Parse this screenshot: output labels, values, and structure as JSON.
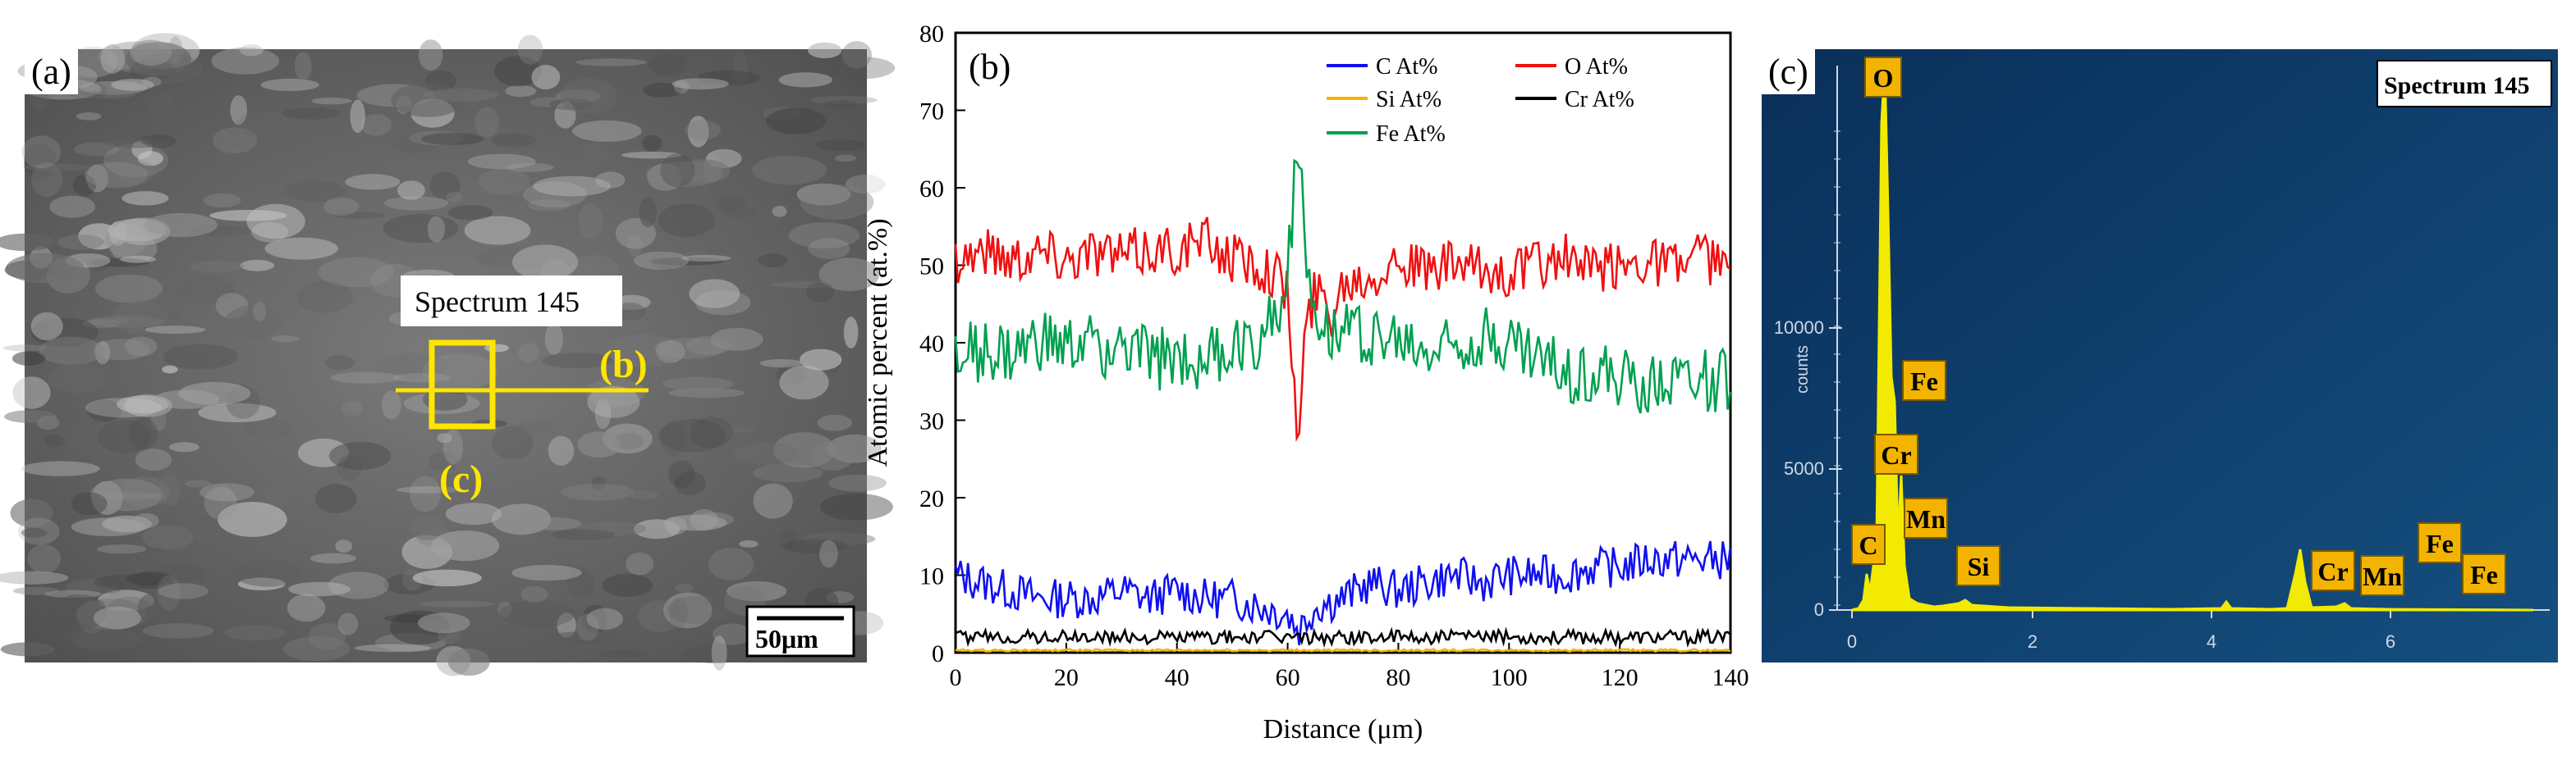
{
  "panel_a": {
    "letter": "(a)",
    "spectrum_label": "Spectrum 145",
    "line_label": "(b)",
    "box_label": "(c)",
    "scale_bar": "50μm"
  },
  "panel_b_letter": "(b)",
  "panel_c": {
    "letter": "(c)",
    "spectrum_label": "Spectrum 145",
    "y_axis_label": "counts",
    "y_ticks": [
      "0",
      "5000",
      "10000"
    ],
    "x_ticks": [
      "0",
      "2",
      "4",
      "6"
    ],
    "element_labels": [
      "O",
      "Fe",
      "Cr",
      "Mn",
      "C",
      "Si",
      "Cr",
      "Mn",
      "Fe",
      "Fe"
    ]
  },
  "chart_data": [
    {
      "type": "line",
      "xlabel": "Distance (μm)",
      "ylabel": "Atomic percent (at.%)",
      "xlim": [
        0,
        140
      ],
      "ylim": [
        0,
        80
      ],
      "x_ticks": [
        0,
        20,
        40,
        60,
        80,
        100,
        120,
        140
      ],
      "y_ticks": [
        0,
        10,
        20,
        30,
        40,
        50,
        60,
        70,
        80
      ],
      "legend_position": "top-right",
      "series": [
        {
          "name": "C At%",
          "color": "#1010f0",
          "points": [
            [
              0,
              10
            ],
            [
              5,
              9
            ],
            [
              10,
              8
            ],
            [
              15,
              7
            ],
            [
              20,
              7
            ],
            [
              25,
              7
            ],
            [
              30,
              8
            ],
            [
              35,
              7
            ],
            [
              40,
              8
            ],
            [
              45,
              7
            ],
            [
              50,
              7
            ],
            [
              55,
              6
            ],
            [
              60,
              5
            ],
            [
              62,
              3
            ],
            [
              65,
              6
            ],
            [
              70,
              7
            ],
            [
              75,
              9
            ],
            [
              80,
              8
            ],
            [
              85,
              9
            ],
            [
              90,
              10
            ],
            [
              95,
              9
            ],
            [
              100,
              10
            ],
            [
              105,
              10
            ],
            [
              110,
              10
            ],
            [
              115,
              11
            ],
            [
              120,
              11
            ],
            [
              125,
              12
            ],
            [
              130,
              12
            ],
            [
              135,
              12
            ],
            [
              140,
              12
            ]
          ]
        },
        {
          "name": "O At%",
          "color": "#f01010",
          "points": [
            [
              0,
              51
            ],
            [
              5,
              52
            ],
            [
              10,
              51
            ],
            [
              15,
              52
            ],
            [
              20,
              51
            ],
            [
              25,
              52
            ],
            [
              30,
              51
            ],
            [
              35,
              52
            ],
            [
              40,
              52
            ],
            [
              45,
              53
            ],
            [
              50,
              51
            ],
            [
              55,
              50
            ],
            [
              58,
              49
            ],
            [
              60,
              46
            ],
            [
              62,
              26
            ],
            [
              63,
              40
            ],
            [
              65,
              47
            ],
            [
              68,
              44
            ],
            [
              70,
              48
            ],
            [
              75,
              49
            ],
            [
              80,
              51
            ],
            [
              85,
              49
            ],
            [
              90,
              50
            ],
            [
              95,
              49
            ],
            [
              100,
              49
            ],
            [
              105,
              50
            ],
            [
              110,
              51
            ],
            [
              115,
              49
            ],
            [
              120,
              50
            ],
            [
              125,
              51
            ],
            [
              130,
              50
            ],
            [
              135,
              51
            ],
            [
              140,
              50
            ]
          ]
        },
        {
          "name": "Si At%",
          "color": "#f2b400",
          "points": [
            [
              0,
              0.3
            ],
            [
              20,
              0.3
            ],
            [
              40,
              0.3
            ],
            [
              60,
              0.3
            ],
            [
              80,
              0.3
            ],
            [
              100,
              0.3
            ],
            [
              120,
              0.3
            ],
            [
              140,
              0.3
            ]
          ]
        },
        {
          "name": "Cr At%",
          "color": "#000000",
          "points": [
            [
              0,
              2
            ],
            [
              10,
              2
            ],
            [
              20,
              2
            ],
            [
              30,
              2
            ],
            [
              40,
              2
            ],
            [
              50,
              2
            ],
            [
              60,
              2
            ],
            [
              70,
              2
            ],
            [
              80,
              2
            ],
            [
              90,
              2
            ],
            [
              100,
              2
            ],
            [
              110,
              2
            ],
            [
              120,
              2
            ],
            [
              130,
              2
            ],
            [
              140,
              2
            ]
          ]
        },
        {
          "name": "Fe At%",
          "color": "#00a050",
          "points": [
            [
              0,
              38
            ],
            [
              5,
              39
            ],
            [
              10,
              38
            ],
            [
              15,
              40
            ],
            [
              20,
              39
            ],
            [
              25,
              40
            ],
            [
              30,
              39
            ],
            [
              35,
              38
            ],
            [
              40,
              38
            ],
            [
              45,
              38
            ],
            [
              50,
              39
            ],
            [
              55,
              41
            ],
            [
              58,
              44
            ],
            [
              60,
              50
            ],
            [
              62,
              66
            ],
            [
              63,
              52
            ],
            [
              65,
              45
            ],
            [
              68,
              42
            ],
            [
              70,
              42
            ],
            [
              75,
              41
            ],
            [
              80,
              40
            ],
            [
              85,
              39
            ],
            [
              90,
              40
            ],
            [
              95,
              41
            ],
            [
              100,
              40
            ],
            [
              105,
              38
            ],
            [
              110,
              36
            ],
            [
              115,
              36
            ],
            [
              120,
              35
            ],
            [
              125,
              35
            ],
            [
              130,
              36
            ],
            [
              135,
              35
            ],
            [
              140,
              35
            ]
          ]
        }
      ]
    }
  ]
}
